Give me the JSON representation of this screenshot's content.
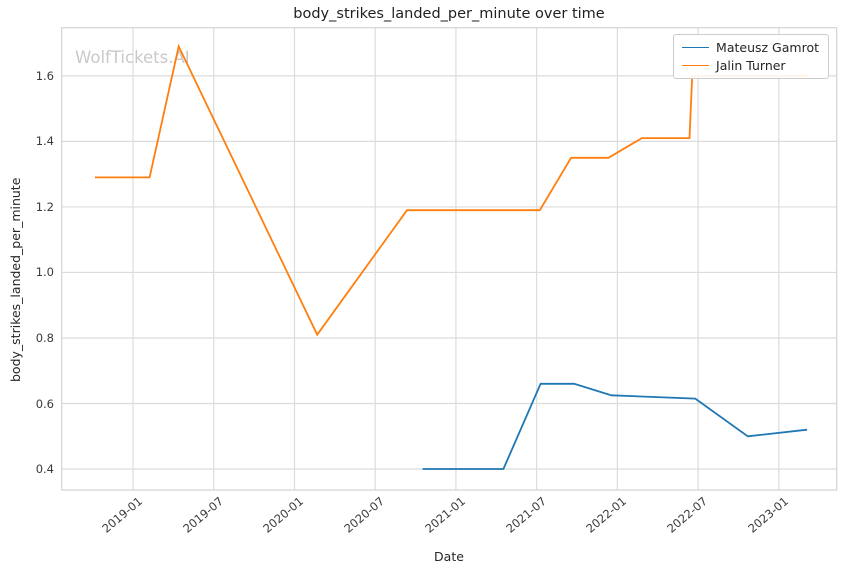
{
  "watermark": "WolfTickets.AI",
  "chart_data": {
    "type": "line",
    "title": "body_strikes_landed_per_minute over time",
    "xlabel": "Date",
    "ylabel": "body_strikes_landed_per_minute",
    "grid": true,
    "legend_position": "upper right",
    "x_tick_labels": [
      "2019-01",
      "2019-07",
      "2020-01",
      "2020-07",
      "2021-01",
      "2021-07",
      "2022-01",
      "2022-07",
      "2023-01"
    ],
    "y_tick_values": [
      0.4,
      0.6,
      0.8,
      1.0,
      1.2,
      1.4,
      1.6
    ],
    "xlim_months_from_2019_01": [
      -5.3,
      52.3
    ],
    "ylim": [
      0.336,
      1.747
    ],
    "colors": {
      "grid": "#dcdcdc",
      "spine": "#d3d3d3",
      "watermark": "#c9c9c9",
      "text": "#262626"
    },
    "series": [
      {
        "name": "Mateusz Gamrot",
        "color": "#1f77b4",
        "points": [
          [
            "2020-10-17",
            0.4
          ],
          [
            "2021-04-17",
            0.4
          ],
          [
            "2021-07-10",
            0.66
          ],
          [
            "2021-09-25",
            0.66
          ],
          [
            "2021-12-18",
            0.625
          ],
          [
            "2022-06-25",
            0.615
          ],
          [
            "2022-10-22",
            0.5
          ],
          [
            "2023-03-04",
            0.52
          ]
        ]
      },
      {
        "name": "Jalin Turner",
        "color": "#ff7f0e",
        "points": [
          [
            "2018-10-06",
            1.29
          ],
          [
            "2019-02-08",
            1.29
          ],
          [
            "2019-04-13",
            1.69
          ],
          [
            "2020-02-22",
            0.81
          ],
          [
            "2020-09-12",
            1.19
          ],
          [
            "2021-07-08",
            1.19
          ],
          [
            "2021-09-18",
            1.35
          ],
          [
            "2021-12-11",
            1.35
          ],
          [
            "2022-02-26",
            1.41
          ],
          [
            "2022-06-12",
            1.41
          ],
          [
            "2022-06-18",
            1.6
          ],
          [
            "2023-03-04",
            1.6
          ]
        ]
      }
    ]
  }
}
